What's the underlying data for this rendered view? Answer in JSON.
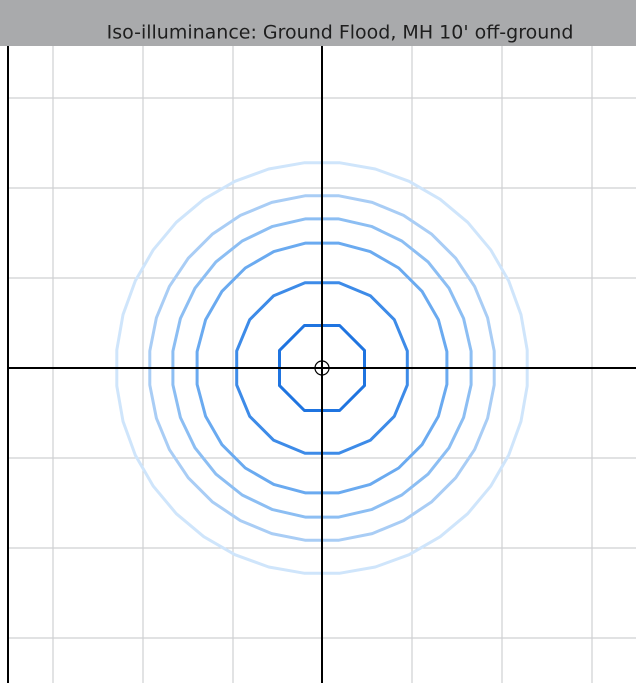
{
  "header": {
    "title": "Iso-illuminance: Ground Flood, MH 10' off-ground"
  }
}
